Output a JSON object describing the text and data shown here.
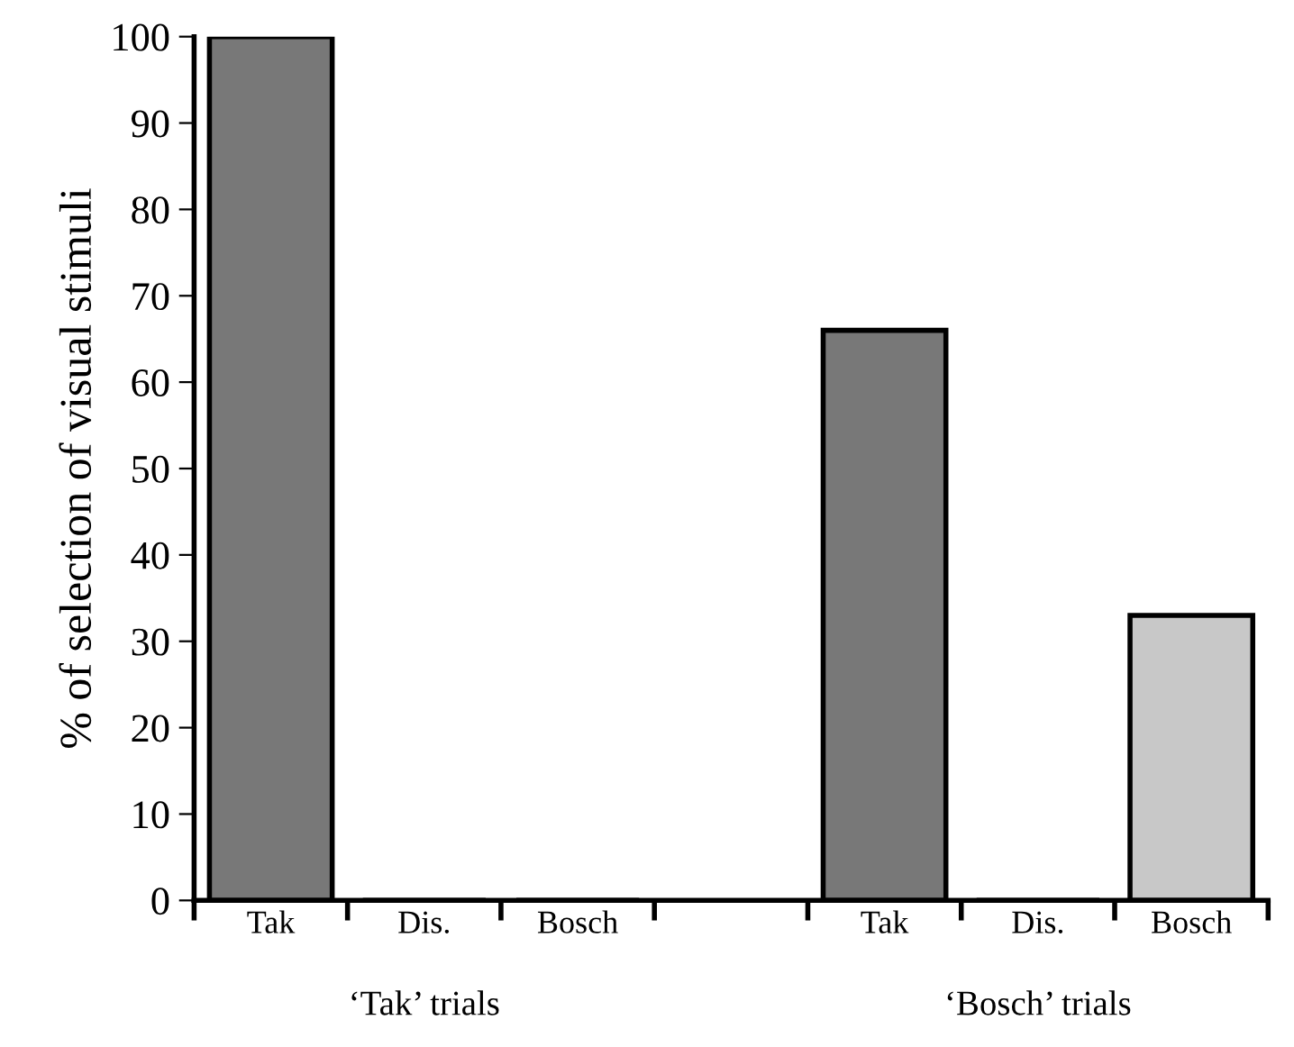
{
  "chart_data": {
    "type": "bar",
    "ylabel": "% of selection of visual stimuli",
    "categories": [
      "Tak",
      "Dis.",
      "Bosch",
      null,
      "Tak",
      "Dis.",
      "Bosch"
    ],
    "values": [
      100,
      0,
      0,
      null,
      66,
      0,
      33
    ],
    "colors": [
      "#787878",
      "#787878",
      "#c8c8c8",
      "#787878",
      "#787878",
      "#787878",
      "#c8c8c8"
    ],
    "ylim": [
      0,
      100
    ],
    "yticks": [
      0,
      10,
      20,
      30,
      40,
      50,
      60,
      70,
      80,
      90,
      100
    ],
    "grid": false,
    "legend": false,
    "annotations": [
      "‘Tak’ trials",
      "‘Bosch’ trials"
    ]
  }
}
